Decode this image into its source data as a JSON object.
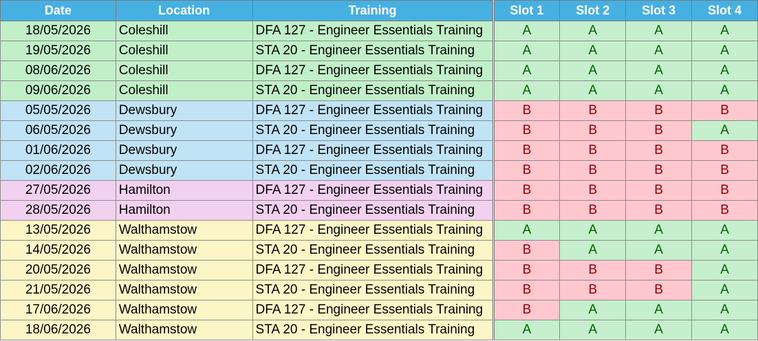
{
  "headers": {
    "date": "Date",
    "location": "Location",
    "training": "Training",
    "slot1": "Slot 1",
    "slot2": "Slot 2",
    "slot3": "Slot 3",
    "slot4": "Slot 4"
  },
  "colors": {
    "header": "#45b0e1",
    "Coleshill": "#c1f0c8",
    "Dewsbury": "#c0e4f5",
    "Hamilton": "#f2d0ef",
    "Walthamstow": "#fcf5c6",
    "slot_A_fill": "#c6efce",
    "slot_A_text": "#006100",
    "slot_B_fill": "#ffc7ce",
    "slot_B_text": "#9c0006"
  },
  "rows": [
    {
      "date": "18/05/2026",
      "location": "Coleshill",
      "training": "DFA 127 - Engineer Essentials Training",
      "slots": [
        "A",
        "A",
        "A",
        "A"
      ]
    },
    {
      "date": "19/05/2026",
      "location": "Coleshill",
      "training": "STA 20 - Engineer Essentials Training",
      "slots": [
        "A",
        "A",
        "A",
        "A"
      ]
    },
    {
      "date": "08/06/2026",
      "location": "Coleshill",
      "training": "DFA 127 - Engineer Essentials Training",
      "slots": [
        "A",
        "A",
        "A",
        "A"
      ]
    },
    {
      "date": "09/06/2026",
      "location": "Coleshill",
      "training": "STA 20 - Engineer Essentials Training",
      "slots": [
        "A",
        "A",
        "A",
        "A"
      ]
    },
    {
      "date": "05/05/2026",
      "location": "Dewsbury",
      "training": "DFA 127 - Engineer Essentials Training",
      "slots": [
        "B",
        "B",
        "B",
        "B"
      ]
    },
    {
      "date": "06/05/2026",
      "location": "Dewsbury",
      "training": "STA 20 - Engineer Essentials Training",
      "slots": [
        "B",
        "B",
        "B",
        "A"
      ]
    },
    {
      "date": "01/06/2026",
      "location": "Dewsbury",
      "training": "DFA 127 - Engineer Essentials Training",
      "slots": [
        "B",
        "B",
        "B",
        "B"
      ]
    },
    {
      "date": "02/06/2026",
      "location": "Dewsbury",
      "training": "STA 20 - Engineer Essentials Training",
      "slots": [
        "B",
        "B",
        "B",
        "B"
      ]
    },
    {
      "date": "27/05/2026",
      "location": "Hamilton",
      "training": "DFA 127 - Engineer Essentials Training",
      "slots": [
        "B",
        "B",
        "B",
        "B"
      ]
    },
    {
      "date": "28/05/2026",
      "location": "Hamilton",
      "training": "STA 20 - Engineer Essentials Training",
      "slots": [
        "B",
        "B",
        "B",
        "B"
      ]
    },
    {
      "date": "13/05/2026",
      "location": "Walthamstow",
      "training": "DFA 127 - Engineer Essentials Training",
      "slots": [
        "A",
        "A",
        "A",
        "A"
      ]
    },
    {
      "date": "14/05/2026",
      "location": "Walthamstow",
      "training": "STA 20 - Engineer Essentials Training",
      "slots": [
        "B",
        "A",
        "A",
        "A"
      ]
    },
    {
      "date": "20/05/2026",
      "location": "Walthamstow",
      "training": "DFA 127 - Engineer Essentials Training",
      "slots": [
        "B",
        "B",
        "B",
        "A"
      ]
    },
    {
      "date": "21/05/2026",
      "location": "Walthamstow",
      "training": "STA 20 - Engineer Essentials Training",
      "slots": [
        "B",
        "B",
        "B",
        "A"
      ]
    },
    {
      "date": "17/06/2026",
      "location": "Walthamstow",
      "training": "DFA 127 - Engineer Essentials Training",
      "slots": [
        "B",
        "A",
        "A",
        "A"
      ]
    },
    {
      "date": "18/06/2026",
      "location": "Walthamstow",
      "training": "STA 20 - Engineer Essentials Training",
      "slots": [
        "A",
        "A",
        "A",
        "A"
      ]
    }
  ]
}
